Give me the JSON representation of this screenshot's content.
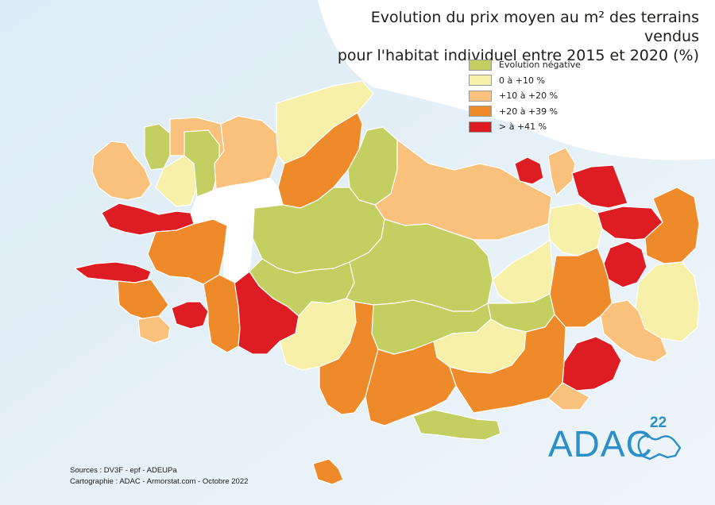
{
  "title_line1": "Evolution du prix moyen au m² des terrains vendus",
  "title_line2": "pour l'habitat individuel entre 2015 et 2020 (%)",
  "legend": [
    {
      "label": "Evolution négative",
      "color": "#c4cf62"
    },
    {
      "label": "0 à +10 %",
      "color": "#f7f0a8"
    },
    {
      "label": "+10 à +20 %",
      "color": "#f9c17c"
    },
    {
      "label": "+20 à +39 %",
      "color": "#ef8a2b"
    },
    {
      "label": "> à +41 %",
      "color": "#dd1d23"
    }
  ],
  "sources_line1": "Sources : DV3F - epf - ADEUPa",
  "sources_line2": "Cartographie : ADAC - Armorstat.com - Octobre 2022",
  "logo": {
    "text": "ADAC",
    "sup": "22",
    "color": "#2b8fc9"
  },
  "colors": {
    "sea": "#e6f1f8",
    "border": "#ffffff",
    "no_data": "#ffffff"
  }
}
